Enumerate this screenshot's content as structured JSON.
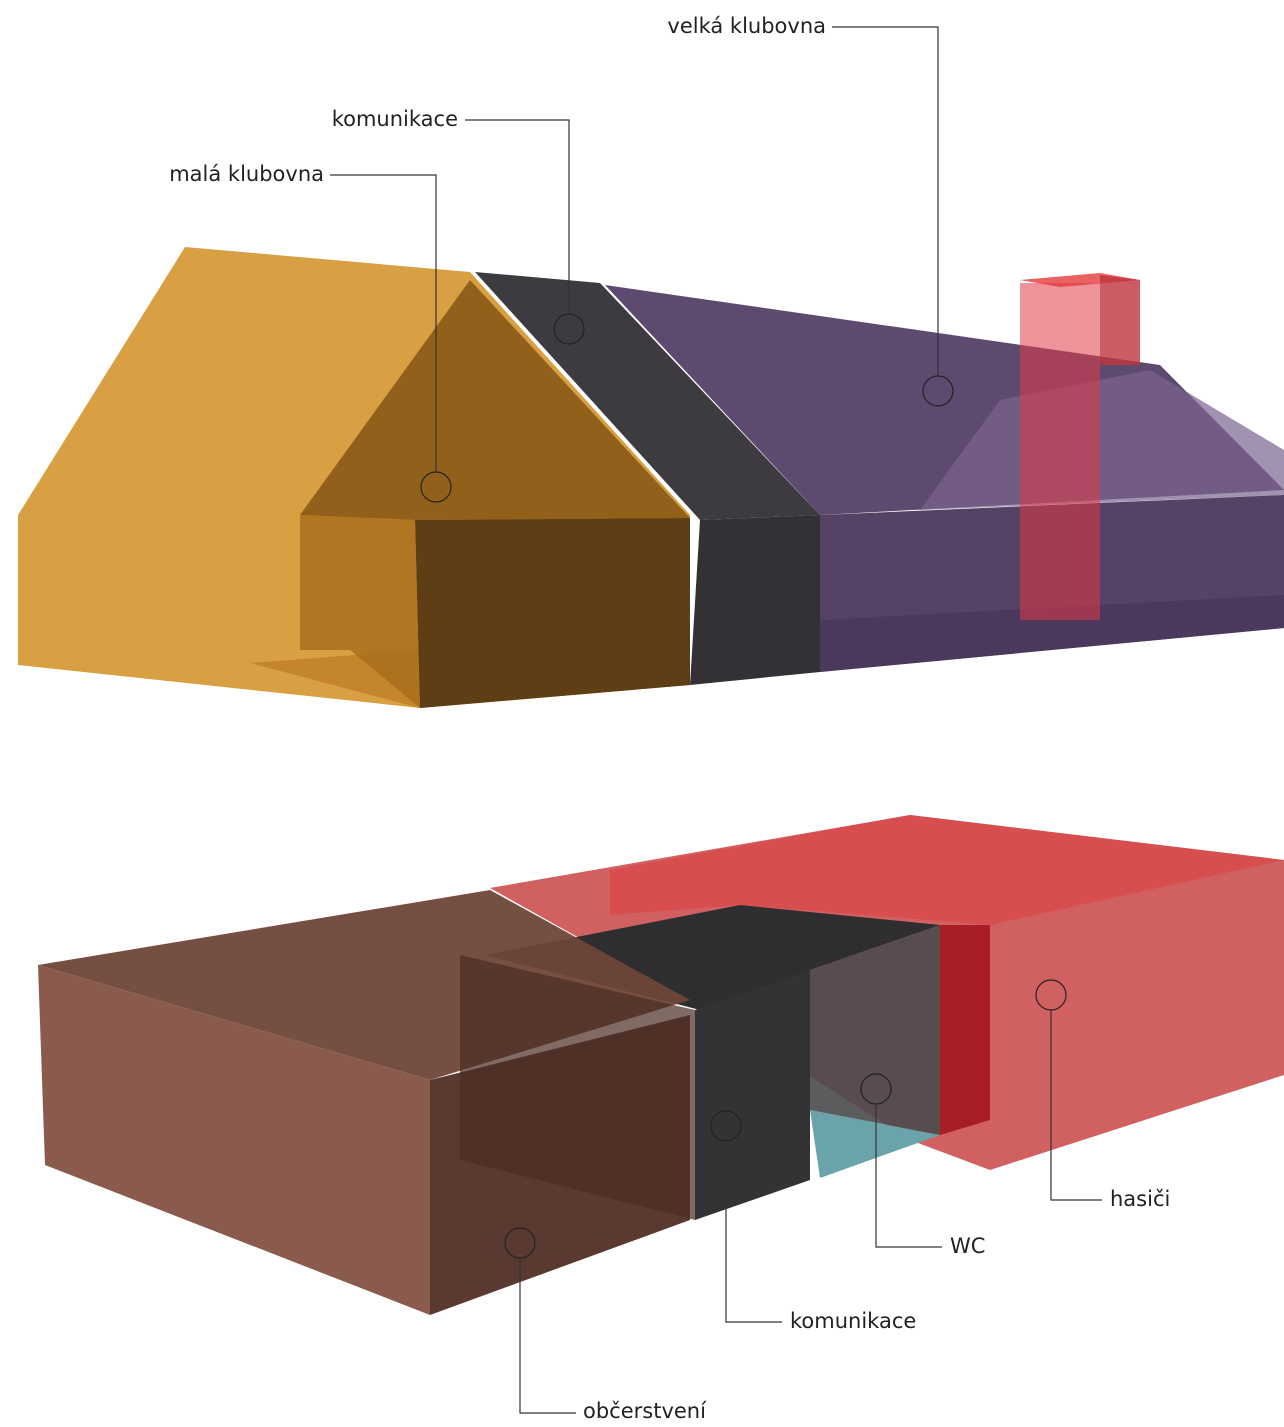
{
  "upper": {
    "labels": [
      "velká klubovna",
      "komunikace",
      "malá klubovna"
    ]
  },
  "lower": {
    "labels": [
      "hasiči",
      "WC",
      "komunikace",
      "občerstvení"
    ]
  }
}
